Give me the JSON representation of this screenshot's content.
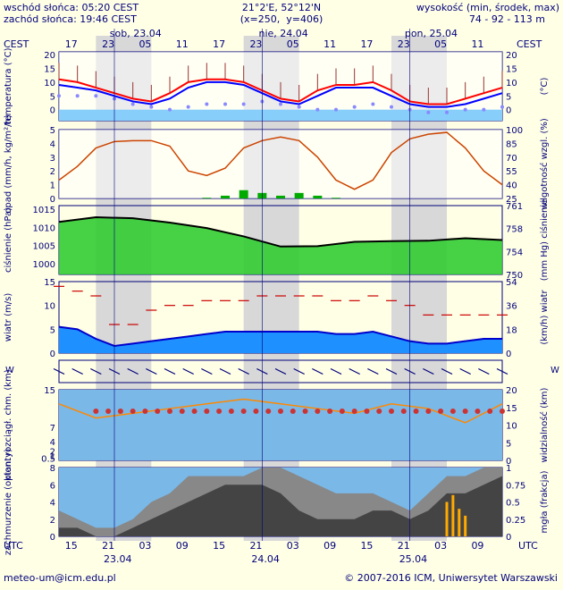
{
  "header": {
    "sunrise": "wschód słońca: 05:20 CEST",
    "sunset": "zachód słońca: 19:46 CEST",
    "coords": "21°2'E, 52°12'N",
    "grid": "(x=250,  y=406)",
    "elev_label": "wysokość (min, środek, max)",
    "elev_values": "74 - 92 - 113 m",
    "tz_left": "CEST",
    "tz_right": "CEST",
    "day_labels": [
      "sob, 23.04",
      "nie, 24.04",
      "pon, 25.04"
    ],
    "cest_ticks": [
      "17",
      "23",
      "05",
      "11",
      "17",
      "23",
      "05",
      "11",
      "17",
      "23",
      "05",
      "11"
    ]
  },
  "footer": {
    "tz": "UTC",
    "tz_right": "UTC",
    "utc_ticks": [
      "15",
      "21",
      "03",
      "09",
      "15",
      "21",
      "03",
      "09",
      "15",
      "21",
      "03",
      "09"
    ],
    "dates": [
      "23.04",
      "24.04",
      "25.04"
    ],
    "email": "meteo-um@icm.edu.pl",
    "copyright": "© 2007-2016 ICM, Uniwersytet Warszawski"
  },
  "colors": {
    "background": "#ffffe6",
    "text": "#00007a",
    "temp_max": "#ff0000",
    "temp_min": "#0000ff",
    "precip": "#00aa00",
    "humidity": "#cc4400",
    "pressure": "#000000",
    "wind_mean": "#0000cc",
    "gust": "#cc0000",
    "visibility": "#ff8800",
    "fog": "#ffaa00"
  },
  "chart_data": [
    {
      "type": "line",
      "title": "",
      "ylabel": "temperatura (°C)",
      "ylabel_right": "(°C)",
      "ylim": [
        -4,
        21
      ],
      "yticks": [
        0,
        5,
        10,
        15,
        20
      ],
      "x_hours": [
        0,
        3,
        6,
        9,
        12,
        15,
        18,
        21,
        24,
        27,
        30,
        33,
        36,
        39,
        42,
        45,
        48,
        51,
        54,
        57,
        60,
        63,
        66,
        69,
        72
      ],
      "series": [
        {
          "name": "max",
          "values": [
            11,
            10,
            8,
            6,
            4,
            3,
            6,
            10,
            11,
            11,
            10,
            7,
            4,
            3,
            7,
            9,
            9,
            10,
            7,
            3,
            2,
            2,
            4,
            6,
            8
          ]
        },
        {
          "name": "min",
          "values": [
            9,
            8,
            7,
            5,
            3,
            2,
            4,
            8,
            10,
            10,
            9,
            6,
            3,
            2,
            5,
            8,
            8,
            8,
            5,
            2,
            1,
            1,
            2,
            4,
            6
          ]
        },
        {
          "name": "dew",
          "values": [
            5,
            5,
            5,
            4,
            2,
            1,
            0,
            1,
            2,
            2,
            2,
            3,
            2,
            1,
            0,
            0,
            1,
            2,
            1,
            0,
            -1,
            -1,
            0,
            0,
            1
          ]
        }
      ]
    },
    {
      "type": "line",
      "ylabel": "opad (mm/h, kg/m²/h)",
      "ylabel_right": "wilgotność wzgl. (%)",
      "ylim": [
        0,
        5
      ],
      "yticks": [
        0,
        1,
        2,
        3,
        4,
        5
      ],
      "yticks_right": [
        25,
        40,
        55,
        70,
        85,
        100
      ],
      "x_hours": [
        0,
        3,
        6,
        9,
        12,
        15,
        18,
        21,
        24,
        27,
        30,
        33,
        36,
        39,
        42,
        45,
        48,
        51,
        54,
        57,
        60,
        63,
        66,
        69,
        72
      ],
      "series": [
        {
          "name": "humidity",
          "values": [
            45,
            60,
            80,
            87,
            88,
            88,
            82,
            55,
            50,
            58,
            80,
            88,
            92,
            88,
            70,
            45,
            35,
            45,
            75,
            90,
            95,
            97,
            80,
            55,
            40
          ]
        },
        {
          "name": "precip",
          "values": [
            0,
            0,
            0,
            0,
            0,
            0,
            0,
            0,
            0.05,
            0.2,
            0.6,
            0.4,
            0.2,
            0.4,
            0.2,
            0.05,
            0,
            0,
            0,
            0,
            0,
            0,
            0,
            0,
            0
          ]
        }
      ]
    },
    {
      "type": "area",
      "ylabel": "ciśnienie (hPa)",
      "ylabel_right": "(mm Hg) ciśnienie",
      "ylim": [
        997,
        1016
      ],
      "yticks": [
        1000,
        1005,
        1010,
        1015
      ],
      "yticks_right": [
        750,
        754,
        758,
        761
      ],
      "x_hours": [
        0,
        6,
        12,
        18,
        24,
        30,
        36,
        42,
        48,
        54,
        60,
        66,
        72
      ],
      "values": [
        1011.5,
        1012.8,
        1012.5,
        1011.3,
        1009.8,
        1007.5,
        1004.7,
        1004.8,
        1006.0,
        1006.2,
        1006.3,
        1007.0,
        1006.5
      ]
    },
    {
      "type": "area",
      "ylabel": "wiatr (m/s)",
      "ylabel_right": "(km/h) wiatr",
      "ylim": [
        0,
        15
      ],
      "yticks": [
        0,
        5,
        10,
        15
      ],
      "yticks_right": [
        0,
        18,
        36,
        54
      ],
      "x_hours": [
        0,
        3,
        6,
        9,
        12,
        15,
        18,
        21,
        24,
        27,
        30,
        33,
        36,
        39,
        42,
        45,
        48,
        51,
        54,
        57,
        60,
        63,
        66,
        69,
        72
      ],
      "series": [
        {
          "name": "mean",
          "values": [
            5.5,
            5.0,
            3.0,
            1.5,
            2.0,
            2.5,
            3.0,
            3.5,
            4.0,
            4.5,
            4.5,
            4.5,
            4.5,
            4.5,
            4.5,
            4.0,
            4.0,
            4.5,
            3.5,
            2.5,
            2.0,
            2.0,
            2.5,
            3.0,
            3.0
          ]
        },
        {
          "name": "gust",
          "values": [
            14,
            13,
            12,
            6,
            6,
            9,
            10,
            10,
            11,
            11,
            11,
            12,
            12,
            12,
            12,
            11,
            11,
            12,
            11,
            10,
            8,
            8,
            8,
            8,
            8
          ]
        }
      ]
    },
    {
      "type": "scatter",
      "ylabel": "pion. rozciągł. chm. (km)",
      "ylabel_right": "widzialność (km)",
      "ylim": [
        0,
        15
      ],
      "yticks": [
        0.5,
        1.0,
        2.0,
        4.0,
        7.0,
        15.0
      ],
      "yticks_right": [
        0,
        5,
        10,
        15,
        20
      ],
      "x_hours": [
        0,
        6,
        12,
        18,
        24,
        30,
        36,
        42,
        48,
        54,
        60,
        66,
        72
      ],
      "values": [
        12,
        9,
        10,
        11,
        12,
        13,
        12,
        11,
        10,
        12,
        11,
        8,
        12
      ]
    },
    {
      "type": "area",
      "ylabel": "zachmurzenie (oktanty)",
      "ylabel_right": "mgła (frakcja)",
      "ylim": [
        0,
        8
      ],
      "yticks": [
        0,
        2,
        4,
        6,
        8
      ],
      "yticks_right": [
        0,
        0.25,
        0.5,
        0.75,
        1
      ],
      "x_hours": [
        0,
        3,
        6,
        9,
        12,
        15,
        18,
        21,
        24,
        27,
        30,
        33,
        36,
        39,
        42,
        45,
        48,
        51,
        54,
        57,
        60,
        63,
        66,
        69,
        72
      ],
      "series": [
        {
          "name": "total",
          "values": [
            3,
            2,
            1,
            1,
            2,
            4,
            5,
            7,
            7,
            7,
            7,
            8,
            8,
            7,
            6,
            5,
            5,
            5,
            4,
            3,
            5,
            7,
            7,
            8,
            8
          ]
        },
        {
          "name": "low",
          "values": [
            1,
            1,
            0,
            0,
            1,
            2,
            3,
            4,
            5,
            6,
            6,
            6,
            5,
            3,
            2,
            2,
            2,
            3,
            3,
            2,
            3,
            5,
            5,
            6,
            7
          ]
        }
      ]
    }
  ]
}
